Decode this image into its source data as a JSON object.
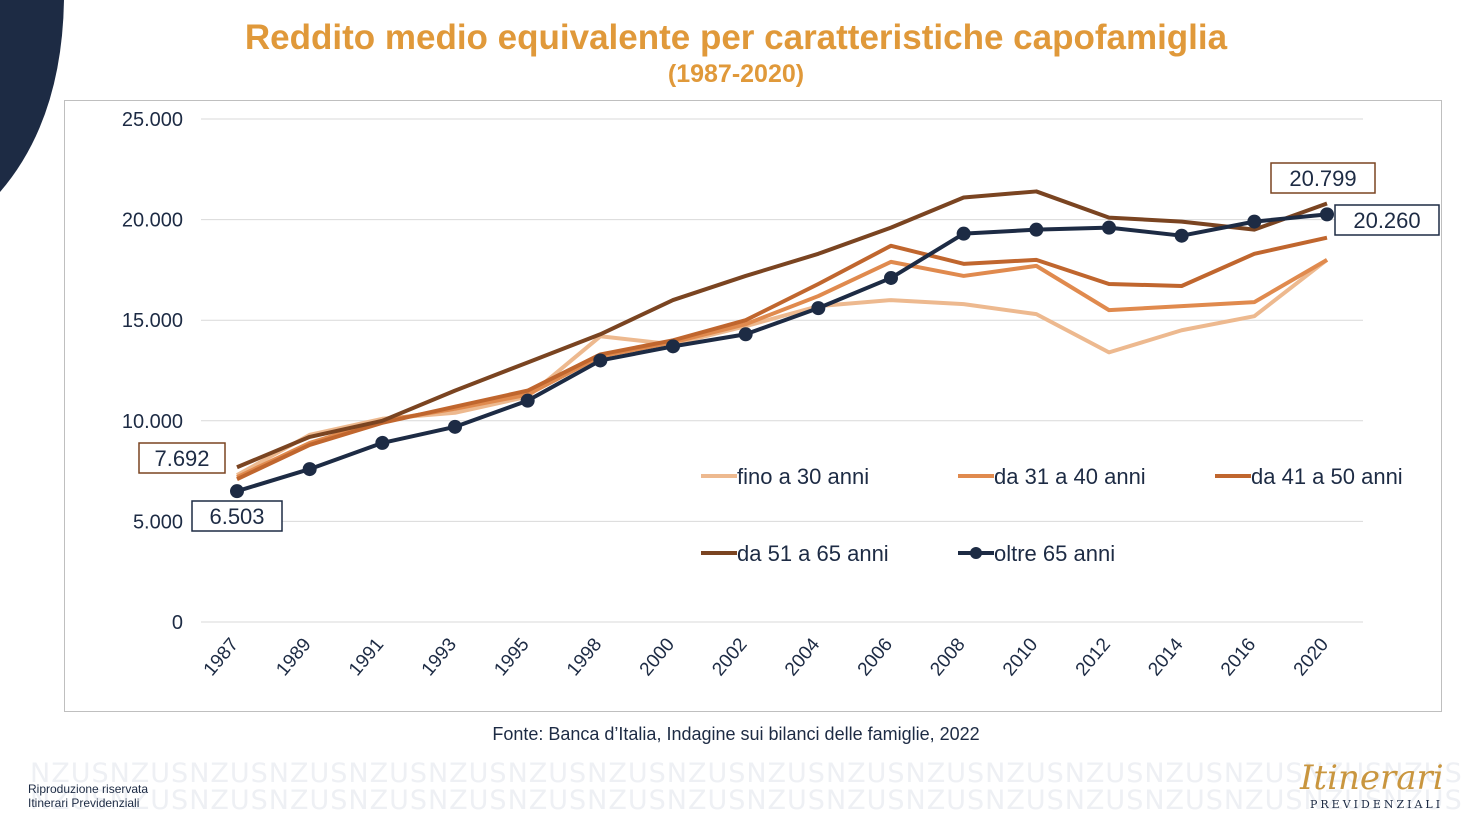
{
  "title": "Reddito medio equivalente per caratteristiche capofamiglia",
  "subtitle": "(1987-2020)",
  "source": "Fonte: Banca d’Italia, Indagine sui bilanci delle famiglie, 2022",
  "footer": {
    "line1": "Riproduzione riservata",
    "line2": "Itinerari Previdenziali"
  },
  "watermark": "NZUSNZUSNZUSNZUSNZUSNZUSNZUSNZUSNZUSNZUSNZUSNZUSNZUSNZUSNZUSNZUSNZUSNZUS",
  "logo": {
    "script": "Itinerari",
    "sub": "PREVIDENZIALI"
  },
  "colors": {
    "title": "#E0993A",
    "navy": "#1d2b44"
  },
  "chart_data": {
    "type": "line",
    "title": "Reddito medio equivalente per caratteristiche capofamiglia",
    "subtitle": "(1987-2020)",
    "categories": [
      "1987",
      "1989",
      "1991",
      "1993",
      "1995",
      "1998",
      "2000",
      "2002",
      "2004",
      "2006",
      "2008",
      "2010",
      "2012",
      "2014",
      "2016",
      "2020"
    ],
    "ylim": [
      0,
      25000
    ],
    "yticks": [
      0,
      5000,
      10000,
      15000,
      20000,
      25000
    ],
    "ytick_labels": [
      "0",
      "5.000",
      "10.000",
      "15.000",
      "20.000",
      "25.000"
    ],
    "grid": true,
    "legend_position": "inside-bottom-right",
    "series": [
      {
        "name": "fino a 30 anni",
        "color": "#EDB98F",
        "marker": false,
        "values": [
          7300,
          9300,
          10100,
          10400,
          11200,
          14200,
          13800,
          14700,
          15700,
          16000,
          15800,
          15300,
          13400,
          14500,
          15200,
          18000
        ]
      },
      {
        "name": "da 31 a 40 anni",
        "color": "#E08A4E",
        "marker": false,
        "values": [
          7200,
          8900,
          10000,
          10600,
          11300,
          13200,
          13900,
          14800,
          16200,
          17900,
          17200,
          17700,
          15500,
          15700,
          15900,
          18000
        ]
      },
      {
        "name": "da 41 a 50 anni",
        "color": "#C0662E",
        "marker": false,
        "values": [
          7100,
          8800,
          9900,
          10700,
          11500,
          13300,
          14000,
          15000,
          16800,
          18700,
          17800,
          18000,
          16800,
          16700,
          18300,
          19100
        ]
      },
      {
        "name": "da 51 a 65 anni",
        "color": "#7A4421",
        "marker": false,
        "values": [
          7692,
          9200,
          10000,
          11500,
          12900,
          14300,
          16000,
          17200,
          18300,
          19600,
          21100,
          21400,
          20100,
          19900,
          19500,
          20799
        ]
      },
      {
        "name": "oltre 65 anni",
        "color": "#1d2b44",
        "marker": true,
        "values": [
          6503,
          7600,
          8900,
          9700,
          11000,
          13000,
          13700,
          14300,
          15600,
          17100,
          19300,
          19500,
          19600,
          19200,
          19900,
          20260
        ]
      }
    ],
    "annotations": [
      {
        "text": "7.692",
        "series": "da 51 a 65 anni",
        "category": "1987"
      },
      {
        "text": "6.503",
        "series": "oltre 65 anni",
        "category": "1987"
      },
      {
        "text": "20.799",
        "series": "da 51 a 65 anni",
        "category": "2020"
      },
      {
        "text": "20.260",
        "series": "oltre 65 anni",
        "category": "2020"
      }
    ]
  }
}
